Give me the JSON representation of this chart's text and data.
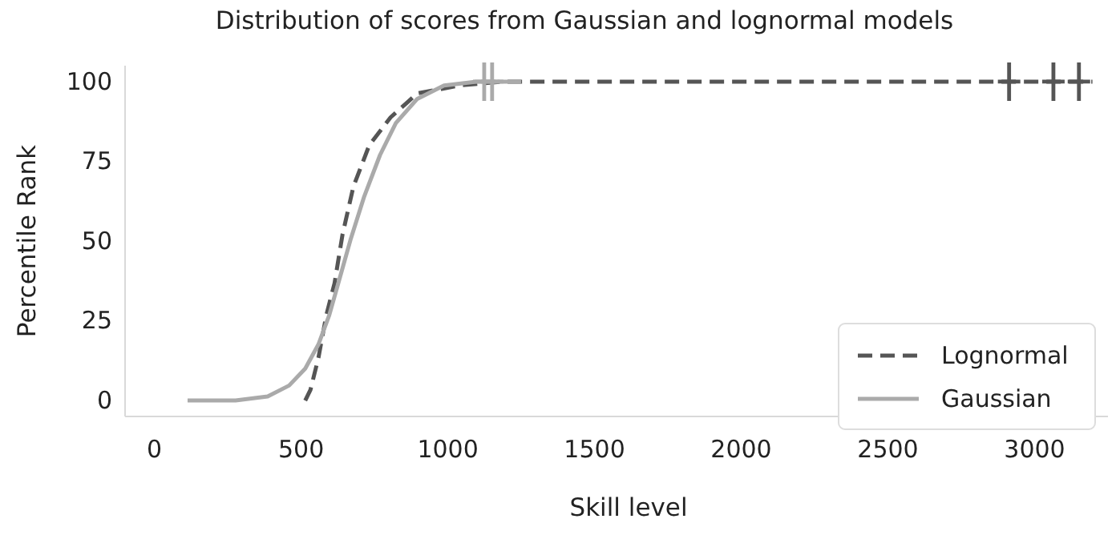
{
  "chart_data": {
    "type": "line",
    "title": "Distribution of scores from Gaussian and lognormal models",
    "xlabel": "Skill level",
    "ylabel": "Percentile Rank",
    "xlim": [
      -100,
      3250
    ],
    "xticks": [
      0,
      500,
      1000,
      1500,
      2000,
      2500,
      3000
    ],
    "ylim": [
      -5,
      105
    ],
    "yticks": [
      0,
      25,
      50,
      75,
      100
    ],
    "grid": false,
    "legend": "bottom right",
    "series": [
      {
        "name": "Lognormal",
        "color": "#555555",
        "line_style": "dashed",
        "marker": "none",
        "x": [
          514,
          532,
          559,
          586,
          614,
          641,
          678,
          732,
          805,
          896,
          1042,
          1186,
          3197
        ],
        "values": [
          0,
          3.4,
          13.4,
          26.8,
          36.8,
          52,
          67,
          80,
          88.8,
          96.3,
          98.8,
          100,
          100
        ]
      },
      {
        "name": "Gaussian",
        "color": "#aaaaaa",
        "line_style": "solid",
        "marker": "none",
        "x": [
          113,
          277,
          386,
          459,
          514,
          559,
          596,
          632,
          668,
          714,
          769,
          823,
          896,
          987,
          1097,
          1250
        ],
        "values": [
          0,
          0,
          1.3,
          4.7,
          10,
          17.6,
          26.8,
          38.5,
          50.3,
          63.7,
          77,
          87,
          94.6,
          98.8,
          100,
          100
        ]
      },
      {
        "type": "scatter",
        "color": "#aaaaaa",
        "marker": "cross",
        "x": [
          1124,
          1151
        ],
        "values": [
          100,
          100
        ]
      },
      {
        "type": "scatter",
        "color": "#555555",
        "marker": "cross",
        "x": [
          2913,
          3064,
          3151
        ],
        "values": [
          100,
          100,
          100
        ]
      }
    ]
  }
}
